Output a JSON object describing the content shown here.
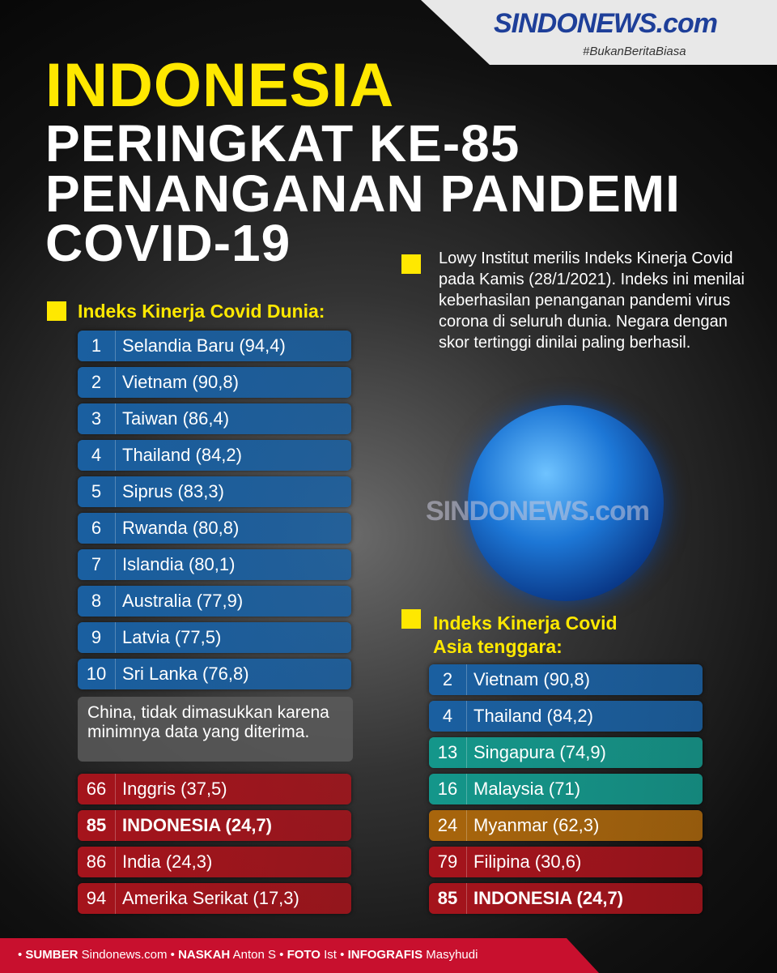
{
  "header": {
    "logo": "SINDONEWS.com",
    "tagline": "#BukanBeritaBiasa",
    "watermark": "SINDONEWS.com"
  },
  "title": {
    "line1": "INDONESIA",
    "line2": "PERINGKAT KE-85",
    "line3": "PENANGANAN PANDEMI",
    "line4": "COVID-19"
  },
  "intro": "Lowy Institut merilis Indeks Kinerja Covid pada Kamis (28/1/2021). Indeks ini menilai keberhasilan penanganan pandemi virus corona di seluruh dunia. Negara dengan skor tertinggi dinilai paling berhasil.",
  "world": {
    "heading": "Indeks Kinerja Covid Dunia:",
    "rows": [
      {
        "rank": 1,
        "text": "Selandia Baru (94,4)",
        "color": "#1a5fa0"
      },
      {
        "rank": 2,
        "text": "Vietnam (90,8)",
        "color": "#1a5fa0"
      },
      {
        "rank": 3,
        "text": "Taiwan (86,4)",
        "color": "#1a5fa0"
      },
      {
        "rank": 4,
        "text": "Thailand (84,2)",
        "color": "#1a5fa0"
      },
      {
        "rank": 5,
        "text": "Siprus (83,3)",
        "color": "#1a5fa0"
      },
      {
        "rank": 6,
        "text": "Rwanda (80,8)",
        "color": "#1a5fa0"
      },
      {
        "rank": 7,
        "text": "Islandia (80,1)",
        "color": "#1a5fa0"
      },
      {
        "rank": 8,
        "text": "Australia (77,9)",
        "color": "#1a5fa0"
      },
      {
        "rank": 9,
        "text": "Latvia (77,5)",
        "color": "#1a5fa0"
      },
      {
        "rank": 10,
        "text": "Sri Lanka (76,8)",
        "color": "#1a5fa0"
      }
    ],
    "note": "China, tidak dimasukkan karena minimnya data yang diterima.",
    "bottom": [
      {
        "rank": 66,
        "text": "Inggris (37,5)",
        "color": "#a5141c"
      },
      {
        "rank": 85,
        "text": "INDONESIA (24,7)",
        "color": "#a5141c",
        "bold": true
      },
      {
        "rank": 86,
        "text": "India (24,3)",
        "color": "#a5141c"
      },
      {
        "rank": 94,
        "text": "Amerika Serikat (17,3)",
        "color": "#a5141c"
      }
    ]
  },
  "asia": {
    "heading1": "Indeks Kinerja Covid",
    "heading2": "Asia tenggara:",
    "rows": [
      {
        "rank": 2,
        "text": "Vietnam (90,8)",
        "color": "#1a5fa0"
      },
      {
        "rank": 4,
        "text": "Thailand (84,2)",
        "color": "#1a5fa0"
      },
      {
        "rank": 13,
        "text": "Singapura (74,9)",
        "color": "#14968a"
      },
      {
        "rank": 16,
        "text": "Malaysia (71)",
        "color": "#14968a"
      },
      {
        "rank": 24,
        "text": "Myanmar (62,3)",
        "color": "#a8650c"
      },
      {
        "rank": 79,
        "text": "Filipina (30,6)",
        "color": "#a5141c"
      },
      {
        "rank": 85,
        "text": "INDONESIA (24,7)",
        "color": "#a5141c",
        "bold": true
      }
    ]
  },
  "credits": [
    {
      "label": "SUMBER",
      "value": "Sindonews.com"
    },
    {
      "label": "NASKAH",
      "value": "Anton S"
    },
    {
      "label": "FOTO",
      "value": "Ist"
    },
    {
      "label": "INFOGRAFIS",
      "value": "Masyhudi"
    }
  ]
}
